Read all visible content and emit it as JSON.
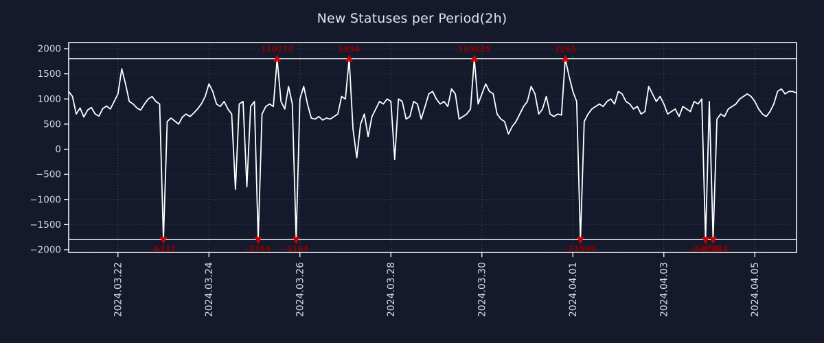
{
  "title": "New Statuses per Period(2h)",
  "colors": {
    "background": "#141a2c",
    "line": "#ffffff",
    "axis": "#ffffff",
    "grid": "#9aa3b5",
    "tick_label": "#d4dae3",
    "title": "#dde3ec",
    "marker": "#d40000",
    "marker_label": "#8b0000"
  },
  "chart_data": {
    "type": "line",
    "title": "New Statuses per Period(2h)",
    "xlabel": "",
    "ylabel": "",
    "ylim": [
      -2000,
      2000
    ],
    "clip": 1800,
    "grid": true,
    "legend_position": "none",
    "yticks": [
      2000,
      1500,
      1000,
      500,
      0,
      -500,
      -1000,
      -1500,
      -2000
    ],
    "ytick_labels": [
      "2000",
      "1500",
      "1000",
      "500",
      "0",
      "−500",
      "−1000",
      "−1500",
      "−2000"
    ],
    "x_tick_labels": [
      "2024.03.22",
      "2024.03.24",
      "2024.03.26",
      "2024.03.28",
      "2024.03.30",
      "2024.04.01",
      "2024.04.03",
      "2024.04.05"
    ],
    "x_tick_indices": [
      13,
      37,
      61,
      85,
      109,
      133,
      157,
      181
    ],
    "values": [
      1150,
      1050,
      700,
      820,
      640,
      780,
      830,
      700,
      660,
      810,
      860,
      800,
      950,
      1100,
      1600,
      1300,
      950,
      900,
      820,
      780,
      900,
      1000,
      1050,
      950,
      900,
      -6217,
      550,
      620,
      560,
      500,
      640,
      700,
      650,
      720,
      800,
      900,
      1050,
      1300,
      1150,
      900,
      850,
      950,
      800,
      700,
      -800,
      900,
      950,
      -750,
      850,
      950,
      -2764,
      700,
      850,
      900,
      850,
      110172,
      950,
      800,
      1250,
      900,
      -5164,
      1000,
      1250,
      900,
      620,
      600,
      650,
      580,
      620,
      600,
      650,
      700,
      1050,
      1000,
      1854,
      400,
      -170,
      500,
      700,
      250,
      650,
      800,
      950,
      900,
      1000,
      950,
      -200,
      1000,
      950,
      600,
      650,
      950,
      900,
      600,
      850,
      1100,
      1150,
      1000,
      900,
      950,
      850,
      1200,
      1100,
      600,
      650,
      700,
      800,
      110635,
      900,
      1100,
      1300,
      1150,
      1100,
      700,
      600,
      550,
      300,
      450,
      550,
      700,
      850,
      950,
      1250,
      1100,
      700,
      800,
      1050,
      700,
      650,
      700,
      680,
      3265,
      1450,
      1150,
      950,
      -11596,
      550,
      700,
      800,
      850,
      900,
      850,
      950,
      1000,
      900,
      1150,
      1100,
      950,
      900,
      800,
      850,
      700,
      750,
      1250,
      1100,
      950,
      1050,
      900,
      700,
      750,
      800,
      650,
      850,
      800,
      750,
      950,
      900,
      1000,
      -32678,
      950,
      -37818,
      600,
      700,
      650,
      800,
      850,
      900,
      1000,
      1050,
      1100,
      1050,
      950,
      800,
      700,
      650,
      750,
      900,
      1150,
      1200,
      1100,
      1150,
      1150,
      1120
    ],
    "annotations": [
      {
        "index": 55,
        "value": 110172,
        "label": "110172"
      },
      {
        "index": 74,
        "value": 1854,
        "label": "1854"
      },
      {
        "index": 107,
        "value": 110635,
        "label": "110635"
      },
      {
        "index": 131,
        "value": 3265,
        "label": "3265"
      },
      {
        "index": 25,
        "value": -6217,
        "label": "-6217"
      },
      {
        "index": 50,
        "value": -2764,
        "label": "-2764"
      },
      {
        "index": 60,
        "value": -5164,
        "label": "-5164"
      },
      {
        "index": 135,
        "value": -11596,
        "label": "-11596"
      },
      {
        "index": 168,
        "value": -32678,
        "label": "-32678"
      },
      {
        "index": 170,
        "value": -37818,
        "label": "-37818"
      }
    ]
  }
}
